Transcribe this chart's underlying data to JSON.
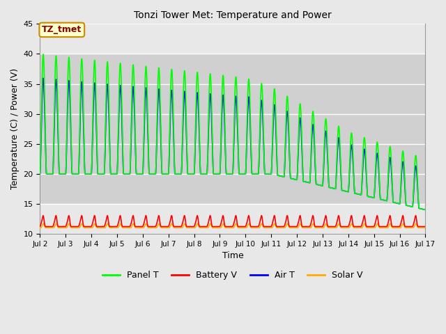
{
  "title": "Tonzi Tower Met: Temperature and Power",
  "xlabel": "Time",
  "ylabel": "Temperature (C) / Power (V)",
  "ylim": [
    10,
    45
  ],
  "xlim": [
    0,
    15
  ],
  "xtick_labels": [
    "Jul 2",
    "Jul 3",
    "Jul 4",
    "Jul 5",
    "Jul 6",
    "Jul 7",
    "Jul 8",
    "Jul 9",
    "Jul 10",
    "Jul 11",
    "Jul 12",
    "Jul 13",
    "Jul 14",
    "Jul 15",
    "Jul 16",
    "Jul 17"
  ],
  "xtick_positions": [
    0,
    1,
    2,
    3,
    4,
    5,
    6,
    7,
    8,
    9,
    10,
    11,
    12,
    13,
    14,
    15
  ],
  "ytick_labels": [
    "10",
    "15",
    "20",
    "25",
    "30",
    "35",
    "40",
    "45"
  ],
  "ytick_positions": [
    10,
    15,
    20,
    25,
    30,
    35,
    40,
    45
  ],
  "bg_color": "#e8e8e8",
  "plot_bg_color": "#e8e8e8",
  "grid_color": "#ffffff",
  "shade_ymin": 15,
  "shade_ymax": 40,
  "shade_color": "#d0d0d0",
  "annotation_text": "TZ_tmet",
  "annotation_bg": "#ffffcc",
  "annotation_border": "#cc8800",
  "annotation_text_color": "#880000",
  "panel_t_color": "#00ff00",
  "battery_v_color": "#ff0000",
  "air_t_color": "#0000ff",
  "solar_v_color": "#ffaa00",
  "line_width": 1.2
}
